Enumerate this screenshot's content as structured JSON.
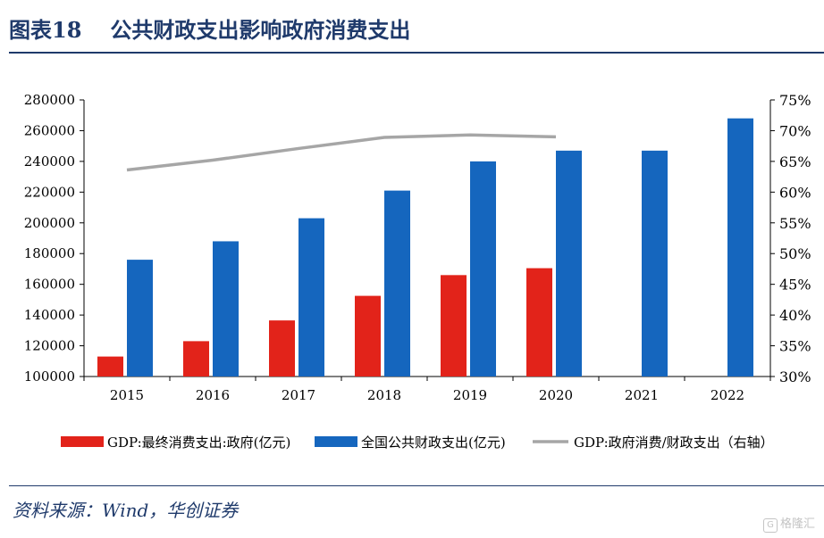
{
  "header": {
    "figure_label": "图表18",
    "title": "公共财政支出影响政府消费支出"
  },
  "source": "资料来源：Wind，华创证券",
  "watermark": "格隆汇",
  "chart_data": {
    "type": "bar",
    "categories": [
      "2015",
      "2016",
      "2017",
      "2018",
      "2019",
      "2020",
      "2021",
      "2022"
    ],
    "series": [
      {
        "name": "GDP:最终消费支出:政府(亿元)",
        "type": "bar",
        "axis": "left",
        "color": "#e2231a",
        "values": [
          113000,
          123000,
          136500,
          152500,
          166000,
          170500,
          null,
          null
        ]
      },
      {
        "name": "全国公共财政支出(亿元)",
        "type": "bar",
        "axis": "left",
        "color": "#1566be",
        "values": [
          176000,
          188000,
          203000,
          221000,
          240000,
          247000,
          247000,
          268000
        ]
      },
      {
        "name": "GDP:政府消费/财政支出（右轴）",
        "type": "line",
        "axis": "right",
        "color": "#a6a6a6",
        "values": [
          63.6,
          65.2,
          67.1,
          68.9,
          69.3,
          69.0,
          null,
          null
        ]
      }
    ],
    "y_left": {
      "min": 100000,
      "max": 280000,
      "step": 20000,
      "ticks": [
        "100000",
        "120000",
        "140000",
        "160000",
        "180000",
        "200000",
        "220000",
        "240000",
        "260000",
        "280000"
      ]
    },
    "y_right": {
      "min": 30,
      "max": 75,
      "step": 5,
      "ticks": [
        "30%",
        "35%",
        "40%",
        "45%",
        "50%",
        "55%",
        "60%",
        "65%",
        "70%",
        "75%"
      ]
    },
    "grid": false,
    "legend_position": "bottom"
  }
}
